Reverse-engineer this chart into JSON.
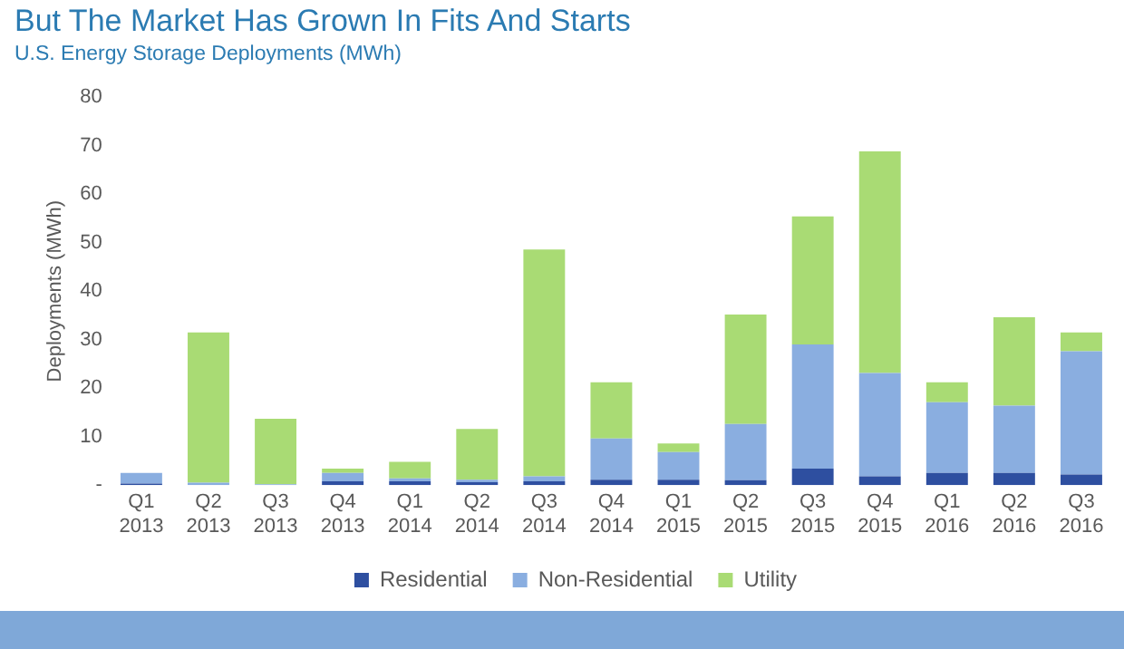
{
  "chart_data": {
    "type": "bar",
    "title": "But The Market Has Grown In Fits And Starts",
    "subtitle": "U.S. Energy Storage Deployments (MWh)",
    "ylabel": "Deployments (MWh)",
    "categories": [
      "Q1 2013",
      "Q2 2013",
      "Q3 2013",
      "Q4 2013",
      "Q1 2014",
      "Q2 2014",
      "Q3 2014",
      "Q4 2014",
      "Q1 2015",
      "Q2 2015",
      "Q3 2015",
      "Q4 2015",
      "Q1 2016",
      "Q2 2016",
      "Q3 2016"
    ],
    "stacked": true,
    "series": [
      {
        "name": "Residential",
        "color": "#2e4fa0",
        "values": [
          0.3,
          0,
          0,
          0.8,
          0.8,
          0.6,
          0.8,
          1.1,
          1.1,
          1.0,
          3.4,
          1.8,
          2.5,
          2.5,
          2.2
        ]
      },
      {
        "name": "Non-Residential",
        "color": "#8aaee0",
        "values": [
          2.2,
          0.5,
          0.2,
          1.7,
          0.6,
          0.5,
          1.0,
          8.5,
          5.7,
          11.6,
          25.6,
          21.3,
          14.6,
          13.9,
          25.4
        ]
      },
      {
        "name": "Utility",
        "color": "#a9db74",
        "values": [
          0,
          31,
          13.5,
          0.9,
          3.4,
          10.5,
          46.8,
          11.6,
          1.8,
          22.6,
          26.4,
          45.7,
          4.1,
          18.2,
          3.9
        ]
      }
    ],
    "ylim": [
      0,
      80
    ],
    "yticks": [
      {
        "value": 0,
        "label": "-"
      },
      10,
      20,
      30,
      40,
      50,
      60,
      70,
      80
    ],
    "grid": false,
    "legend": "bottom"
  }
}
